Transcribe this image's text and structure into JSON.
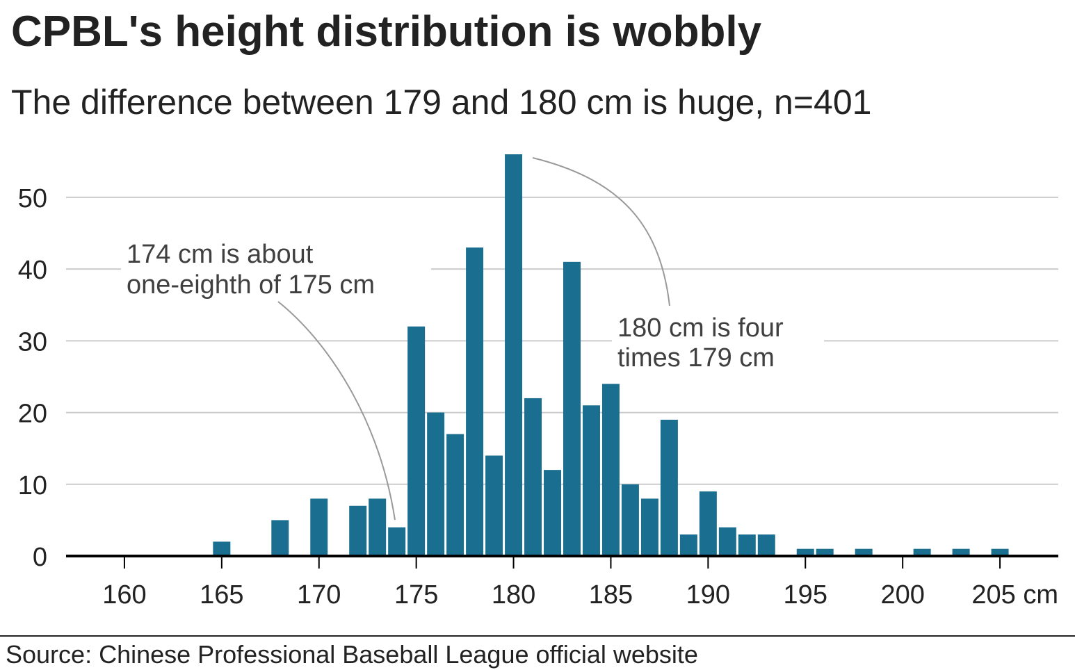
{
  "title": "CPBL's height distribution is wobbly",
  "subtitle": "The difference between 179 and 180 cm is huge, n=401",
  "source": "Source: Chinese Professional Baseball League official website",
  "colors": {
    "bar": "#1a6e8f",
    "grid": "#cccccc",
    "axis": "#000000",
    "annotation_line": "#999999"
  },
  "chart_data": {
    "type": "bar",
    "xlabel": "",
    "ylabel": "",
    "x_unit": "cm",
    "ylim": [
      0,
      56
    ],
    "xlim": [
      157,
      208
    ],
    "grid": "horizontal",
    "categories": [
      165,
      168,
      170,
      172,
      173,
      174,
      175,
      176,
      177,
      178,
      179,
      180,
      181,
      182,
      183,
      184,
      185,
      186,
      187,
      188,
      189,
      190,
      191,
      192,
      193,
      195,
      196,
      198,
      201,
      203,
      205
    ],
    "values": [
      2,
      5,
      8,
      7,
      8,
      4,
      32,
      20,
      17,
      43,
      14,
      56,
      22,
      12,
      41,
      21,
      24,
      10,
      8,
      19,
      3,
      9,
      4,
      3,
      3,
      1,
      1,
      1,
      1,
      1,
      1
    ],
    "x_ticks": [
      {
        "value": 160,
        "label": "160"
      },
      {
        "value": 165,
        "label": "165"
      },
      {
        "value": 170,
        "label": "170"
      },
      {
        "value": 175,
        "label": "175"
      },
      {
        "value": 180,
        "label": "180"
      },
      {
        "value": 185,
        "label": "185"
      },
      {
        "value": 190,
        "label": "190"
      },
      {
        "value": 195,
        "label": "195"
      },
      {
        "value": 200,
        "label": "200"
      },
      {
        "value": 205,
        "label": "205 cm"
      }
    ],
    "y_ticks": [
      {
        "value": 0,
        "label": "0"
      },
      {
        "value": 10,
        "label": "10"
      },
      {
        "value": 20,
        "label": "20"
      },
      {
        "value": 30,
        "label": "30"
      },
      {
        "value": 40,
        "label": "40"
      },
      {
        "value": 50,
        "label": "50"
      }
    ],
    "annotations": [
      {
        "lines": [
          "174 cm is about",
          "one-eighth of 175 cm"
        ],
        "target": 174
      },
      {
        "lines": [
          "180 cm is four",
          "times 179 cm"
        ],
        "target": 180
      }
    ]
  }
}
